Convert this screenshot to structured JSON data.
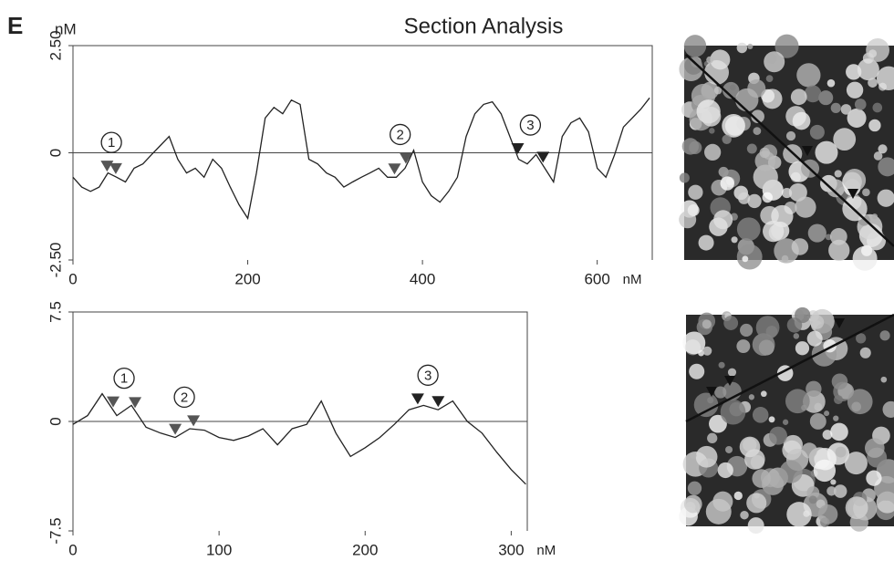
{
  "panel_label": "E",
  "title": "Section Analysis",
  "chart_data": [
    {
      "type": "line",
      "y_label": "nM",
      "x_label": "nM",
      "color": "#222",
      "xlim": [
        0,
        663
      ],
      "ylim": [
        -2.5,
        2.5
      ],
      "xticks": [
        0,
        200,
        400,
        600
      ],
      "yticks": [
        {
          "value": 2.5,
          "label": "2.50"
        },
        0,
        {
          "value": -2.5,
          "label": "-2.50"
        }
      ],
      "x": [
        0,
        10,
        20,
        30,
        40,
        50,
        60,
        70,
        80,
        90,
        100,
        110,
        120,
        130,
        140,
        150,
        160,
        170,
        180,
        190,
        200,
        210,
        220,
        230,
        240,
        250,
        260,
        270,
        280,
        290,
        300,
        310,
        320,
        330,
        340,
        350,
        360,
        370,
        380,
        390,
        400,
        410,
        420,
        430,
        440,
        450,
        460,
        470,
        480,
        490,
        500,
        510,
        520,
        530,
        540,
        550,
        560,
        570,
        580,
        590,
        600,
        610,
        620,
        630,
        640,
        650,
        660
      ],
      "values": [
        -0.57,
        -0.8,
        -0.9,
        -0.8,
        -0.47,
        -0.57,
        -0.68,
        -0.36,
        -0.26,
        -0.04,
        0.17,
        0.38,
        -0.15,
        -0.47,
        -0.36,
        -0.57,
        -0.15,
        -0.36,
        -0.8,
        -1.21,
        -1.53,
        -0.47,
        0.81,
        1.06,
        0.91,
        1.23,
        1.13,
        -0.15,
        -0.26,
        -0.47,
        -0.57,
        -0.8,
        -0.68,
        -0.57,
        -0.47,
        -0.36,
        -0.57,
        -0.57,
        -0.36,
        0.06,
        -0.68,
        -1.0,
        -1.15,
        -0.9,
        -0.57,
        0.38,
        0.91,
        1.13,
        1.19,
        0.91,
        0.38,
        -0.15,
        -0.26,
        -0.04,
        -0.36,
        -0.68,
        0.38,
        0.7,
        0.81,
        0.49,
        -0.36,
        -0.57,
        -0.04,
        0.6,
        0.81,
        1.02,
        1.28
      ],
      "markers": [
        {
          "label": "1",
          "x": [
            39,
            49
          ],
          "color": "#555"
        },
        {
          "label": "2",
          "x": [
            368,
            381
          ],
          "color": "#555"
        },
        {
          "label": "3",
          "x": [
            509,
            538
          ],
          "color": "#222"
        }
      ]
    },
    {
      "type": "line",
      "x_label": "nM",
      "color": "#222",
      "xlim": [
        0,
        311
      ],
      "ylim": [
        -7.5,
        7.5
      ],
      "xticks": [
        0,
        100,
        200,
        300
      ],
      "yticks": [
        7.5,
        0,
        -7.5
      ],
      "x": [
        0,
        10,
        20,
        30,
        40,
        50,
        60,
        70,
        80,
        90,
        100,
        110,
        120,
        130,
        140,
        150,
        160,
        170,
        180,
        190,
        200,
        210,
        220,
        230,
        240,
        250,
        260,
        270,
        280,
        290,
        300,
        310
      ],
      "values": [
        -0.2,
        0.4,
        1.9,
        0.4,
        1.1,
        -0.4,
        -0.8,
        -1.1,
        -0.5,
        -0.6,
        -1.1,
        -1.3,
        -1.0,
        -0.5,
        -1.6,
        -0.5,
        -0.2,
        1.4,
        -0.8,
        -2.4,
        -1.8,
        -1.1,
        -0.2,
        0.8,
        1.1,
        0.8,
        1.4,
        0,
        -0.8,
        -2.1,
        -3.3,
        -4.3
      ],
      "markers": [
        {
          "label": "1",
          "x": [
            27.5,
            42.5
          ],
          "color": "#555"
        },
        {
          "label": "2",
          "x": [
            70,
            82.5
          ],
          "color": "#555"
        },
        {
          "label": "3",
          "x": [
            236,
            250
          ],
          "color": "#222"
        }
      ]
    }
  ]
}
